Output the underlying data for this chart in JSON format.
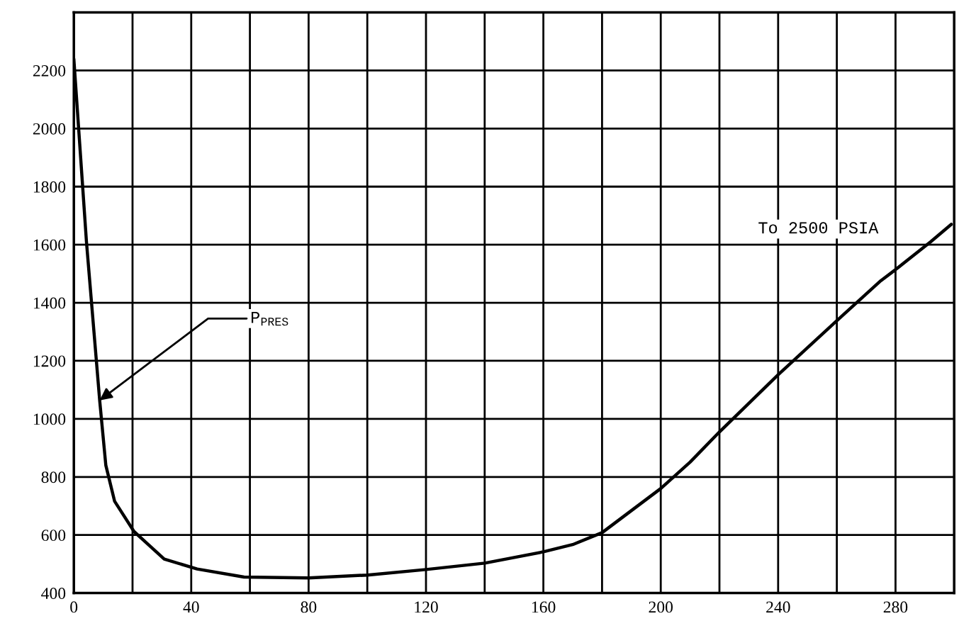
{
  "chart_data": {
    "type": "line",
    "x": [
      0,
      4.3,
      8.8,
      10.9,
      13.9,
      20.5,
      30.8,
      42,
      58,
      80,
      100,
      120,
      140,
      160,
      170,
      180,
      200,
      210,
      220,
      240,
      260,
      275,
      280,
      292,
      299
    ],
    "series": [
      {
        "color": "#000000",
        "values": [
          2240,
          1610,
          1064,
          840,
          716,
          612,
          517,
          483,
          455,
          452,
          462,
          481,
          503,
          542,
          567,
          608,
          760,
          851,
          955,
          1152,
          1338,
          1476,
          1514,
          1610,
          1670
        ]
      }
    ],
    "xlim": [
      0,
      300
    ],
    "ylim": [
      400,
      2400
    ],
    "xticks": [
      0,
      {
        "value": 20,
        "label": null
      },
      40,
      {
        "value": 60,
        "label": null
      },
      80,
      {
        "value": 100,
        "label": null
      },
      120,
      {
        "value": 140,
        "label": null
      },
      160,
      {
        "value": 180,
        "label": null
      },
      200,
      {
        "value": 220,
        "label": null
      },
      240,
      {
        "value": 260,
        "label": null
      },
      280,
      {
        "value": 300,
        "label": null
      }
    ],
    "yticks": [
      400,
      600,
      800,
      1000,
      1200,
      1400,
      1600,
      1800,
      2000,
      2200,
      {
        "value": 2400,
        "label": null
      }
    ],
    "grid": true,
    "marker": "none",
    "line_style": "solid",
    "annotations": [
      {
        "text": "P$_{PRES}$",
        "x": 8.8,
        "y": 1064
      },
      "To 2500 PSIA"
    ]
  }
}
